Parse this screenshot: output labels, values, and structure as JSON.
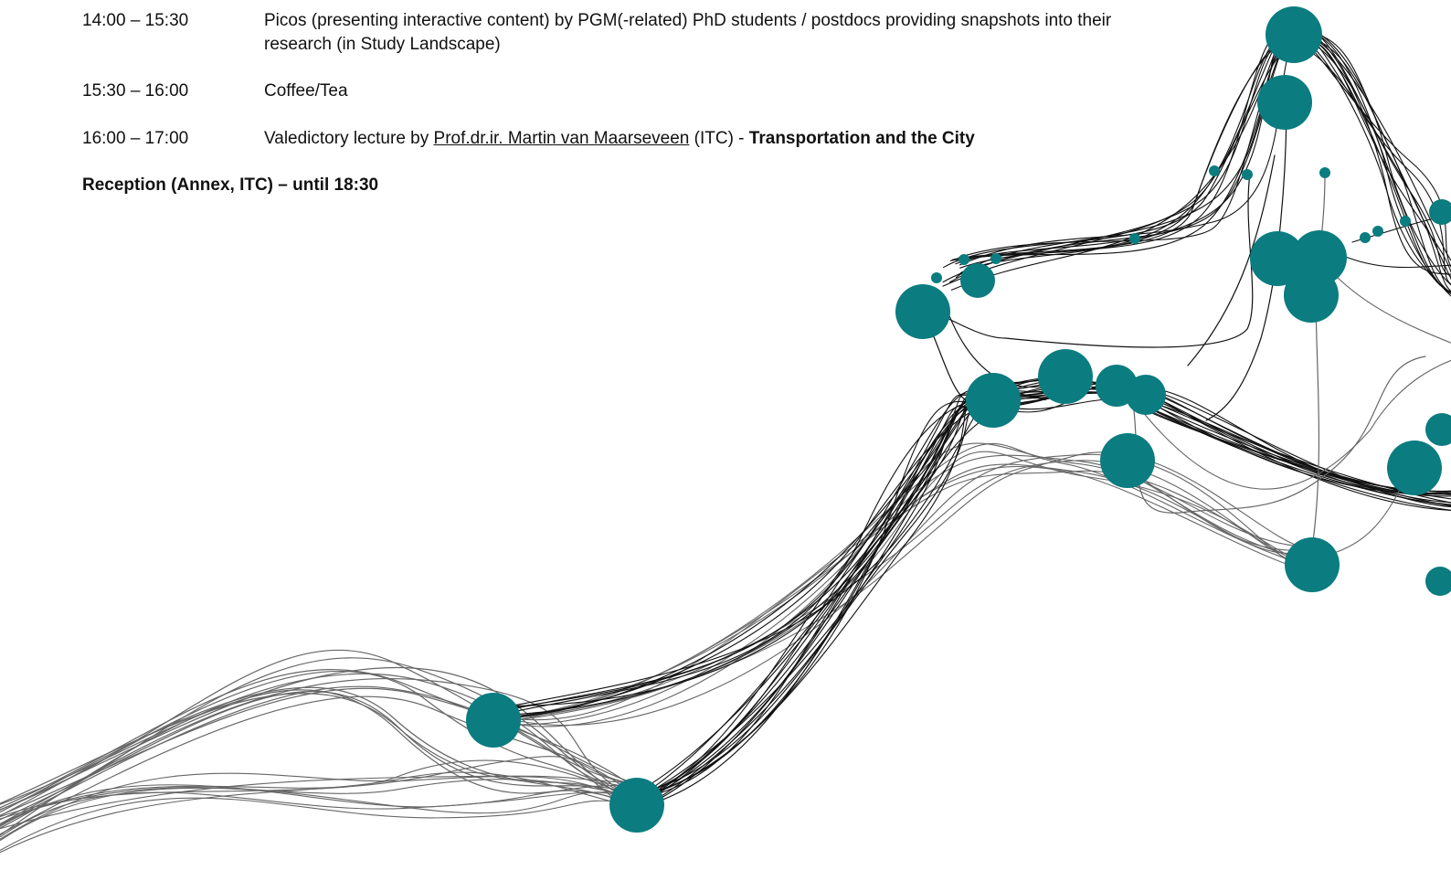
{
  "schedule": [
    {
      "time": "14:00 – 15:30",
      "description": "Picos (presenting interactive content) by PGM(-related) PhD students / postdocs providing snapshots into their research (in Study Landscape)"
    },
    {
      "time": "15:30 – 16:00",
      "description": "Coffee/Tea"
    },
    {
      "time": "16:00 – 17:00",
      "prefix": "Valedictory lecture by ",
      "speaker": "Prof.dr.ir. Martin van Maarseveen",
      "affiliation": " (ITC) - ",
      "title": "Transportation and the City"
    }
  ],
  "reception": "Reception (Annex, ITC) – until 18:30",
  "colors": {
    "node": "#0b7c80",
    "flow_dark": "#111111",
    "flow_grey": "#666666"
  }
}
